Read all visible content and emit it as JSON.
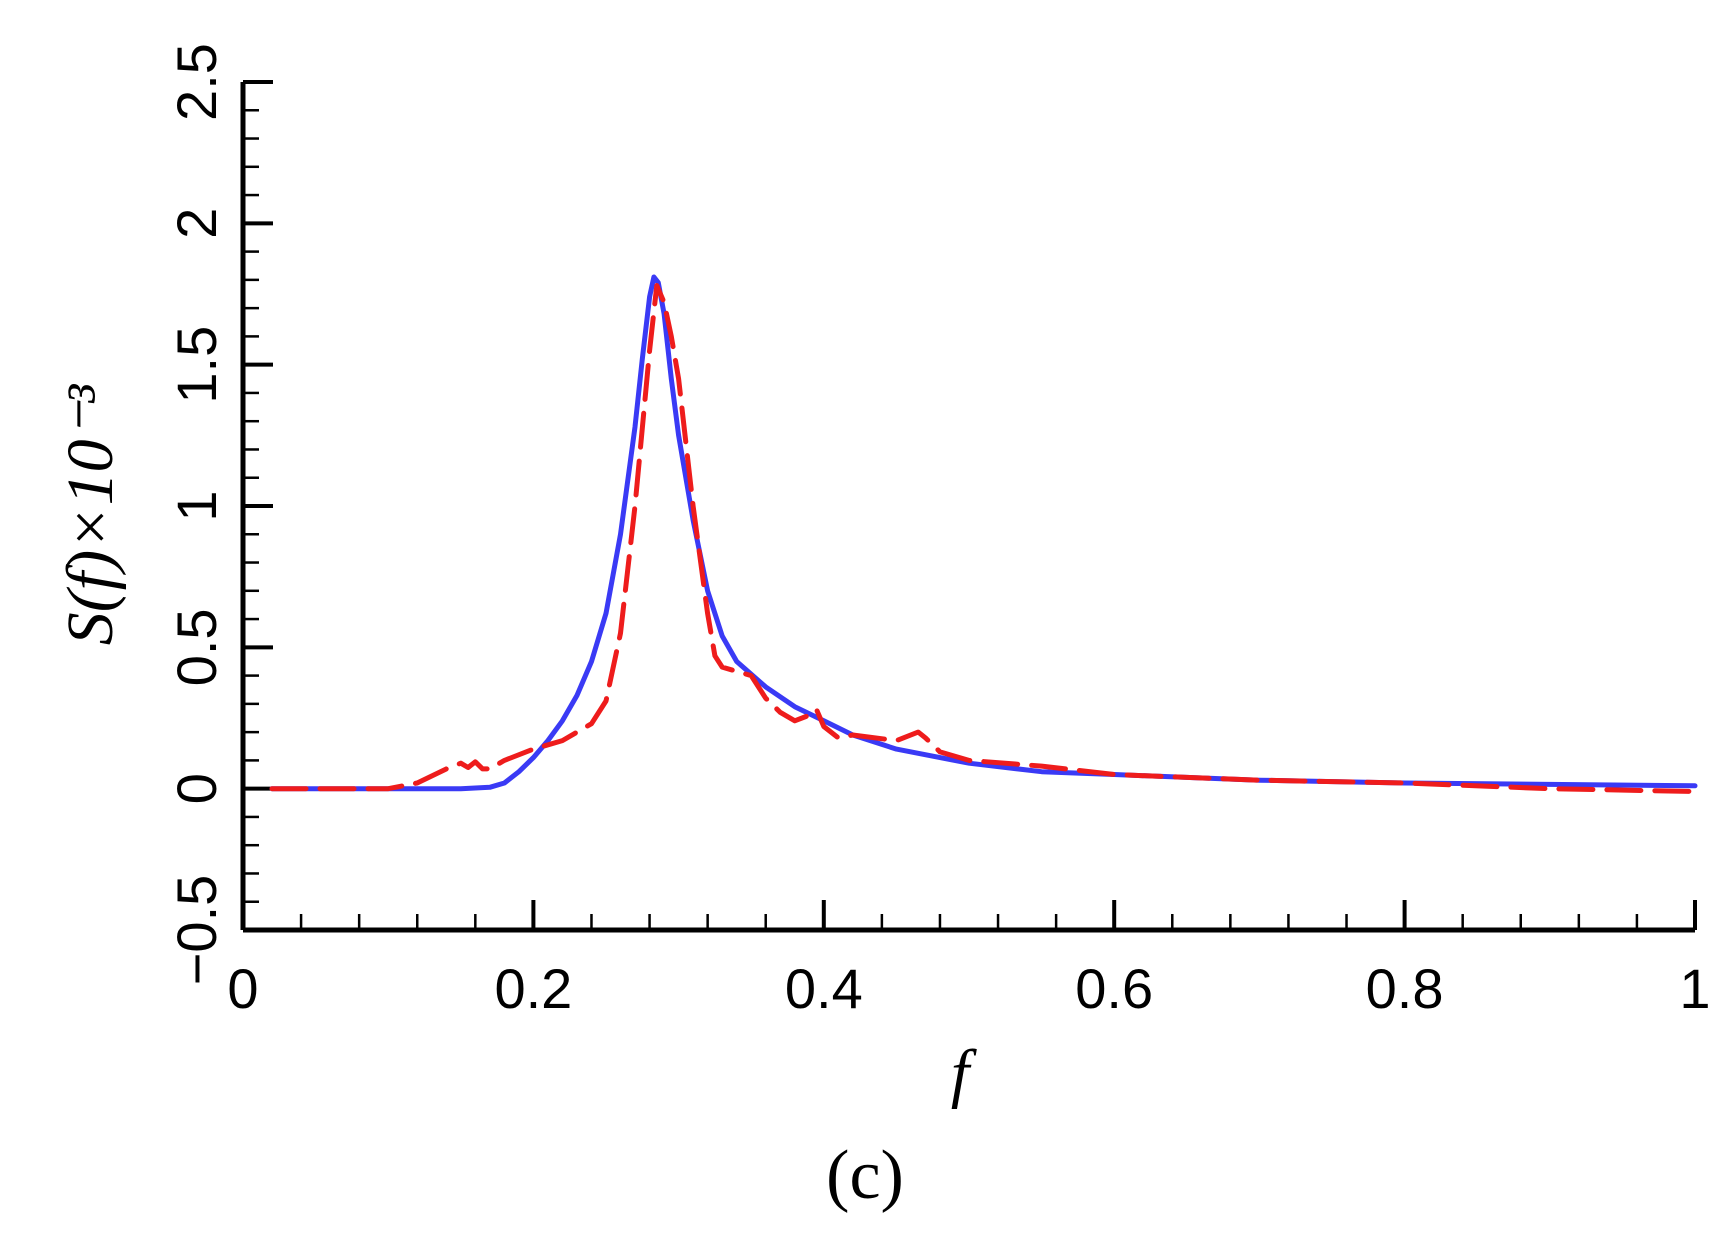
{
  "panel_label": "(c)",
  "chart_data": {
    "type": "line",
    "xlabel": "f",
    "ylabel": "S(f)×10⁻³",
    "xlim": [
      0,
      1
    ],
    "ylim": [
      -0.5,
      2.5
    ],
    "x_ticks": [
      "0",
      "0.2",
      "0.4",
      "0.6",
      "0.8",
      "1"
    ],
    "y_ticks": [
      "−0.5",
      "0",
      "0.5",
      "1",
      "1.5",
      "2",
      "2.5"
    ],
    "grid": false,
    "legend": "none",
    "series": [
      {
        "color": "#3a3af5",
        "style": "solid",
        "x": [
          0.02,
          0.1,
          0.15,
          0.17,
          0.18,
          0.19,
          0.2,
          0.21,
          0.22,
          0.23,
          0.24,
          0.25,
          0.26,
          0.27,
          0.275,
          0.28,
          0.283,
          0.286,
          0.29,
          0.295,
          0.3,
          0.31,
          0.32,
          0.33,
          0.34,
          0.36,
          0.38,
          0.4,
          0.42,
          0.45,
          0.5,
          0.55,
          0.6,
          0.65,
          0.7,
          0.8,
          0.9,
          1.0
        ],
        "y": [
          0,
          0,
          0,
          0.005,
          0.02,
          0.06,
          0.11,
          0.17,
          0.24,
          0.33,
          0.45,
          0.62,
          0.9,
          1.28,
          1.52,
          1.74,
          1.81,
          1.79,
          1.68,
          1.45,
          1.25,
          0.95,
          0.7,
          0.54,
          0.45,
          0.36,
          0.29,
          0.24,
          0.19,
          0.14,
          0.09,
          0.06,
          0.05,
          0.04,
          0.03,
          0.02,
          0.015,
          0.01
        ]
      },
      {
        "color": "#ee1c1c",
        "style": "dashed",
        "x": [
          0.02,
          0.1,
          0.12,
          0.14,
          0.15,
          0.155,
          0.16,
          0.165,
          0.17,
          0.18,
          0.2,
          0.22,
          0.24,
          0.25,
          0.26,
          0.27,
          0.28,
          0.285,
          0.29,
          0.295,
          0.3,
          0.31,
          0.32,
          0.325,
          0.33,
          0.35,
          0.36,
          0.37,
          0.38,
          0.39,
          0.395,
          0.4,
          0.41,
          0.42,
          0.45,
          0.465,
          0.47,
          0.48,
          0.5,
          0.55,
          0.6,
          0.65,
          0.7,
          0.8,
          0.9,
          1.0
        ],
        "y": [
          0,
          0,
          0.02,
          0.07,
          0.09,
          0.075,
          0.095,
          0.07,
          0.07,
          0.1,
          0.14,
          0.17,
          0.23,
          0.31,
          0.55,
          1.0,
          1.55,
          1.78,
          1.72,
          1.6,
          1.45,
          1.0,
          0.62,
          0.47,
          0.43,
          0.4,
          0.32,
          0.27,
          0.24,
          0.26,
          0.28,
          0.22,
          0.18,
          0.19,
          0.17,
          0.2,
          0.18,
          0.13,
          0.1,
          0.08,
          0.05,
          0.04,
          0.03,
          0.02,
          0.0,
          -0.01
        ]
      }
    ]
  }
}
